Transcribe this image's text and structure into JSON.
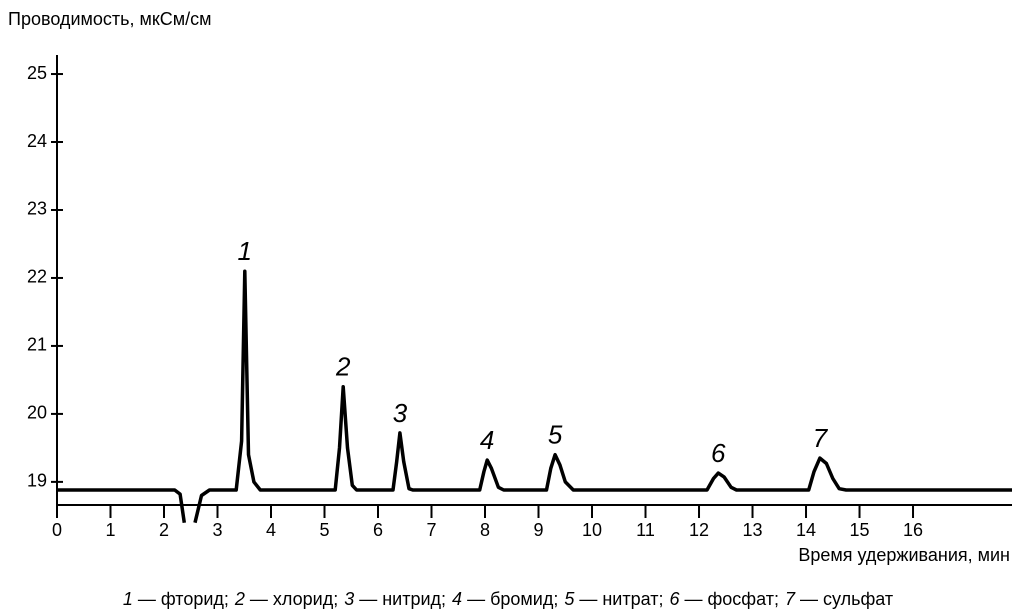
{
  "chart_data": {
    "type": "line",
    "y_label": "Проводимость, мкСм/см",
    "x_label": "Время удерживания, мин",
    "x": [
      0,
      2.2,
      2.3,
      2.38,
      null,
      2.58,
      2.7,
      2.85,
      3.35,
      3.45,
      3.51,
      3.58,
      3.68,
      3.8,
      5.2,
      5.28,
      5.35,
      5.43,
      5.52,
      5.6,
      6.28,
      6.35,
      6.41,
      6.48,
      6.58,
      6.65,
      7.9,
      7.98,
      8.04,
      8.12,
      8.25,
      8.35,
      9.15,
      9.23,
      9.31,
      9.4,
      9.5,
      9.65,
      12.15,
      12.27,
      12.36,
      12.47,
      12.6,
      12.7,
      14.05,
      14.15,
      14.26,
      14.38,
      14.5,
      14.62,
      14.75,
      17.85
    ],
    "series": [
      {
        "color": "#000000",
        "values": [
          18.88,
          18.88,
          18.82,
          18.4,
          null,
          18.4,
          18.8,
          18.88,
          18.88,
          19.6,
          22.1,
          19.4,
          19.0,
          18.88,
          18.88,
          19.5,
          20.4,
          19.5,
          18.95,
          18.88,
          18.88,
          19.3,
          19.72,
          19.3,
          18.9,
          18.88,
          18.88,
          19.15,
          19.32,
          19.2,
          18.92,
          18.88,
          18.88,
          19.2,
          19.4,
          19.25,
          19.0,
          18.88,
          18.88,
          19.05,
          19.13,
          19.07,
          18.92,
          18.88,
          18.88,
          19.15,
          19.35,
          19.27,
          19.05,
          18.9,
          18.88,
          18.88
        ]
      }
    ],
    "xlim": [
      0,
      17.85
    ],
    "ylim": [
      18.66,
      25.28
    ],
    "xticks": [
      0,
      1,
      2,
      3,
      4,
      5,
      6,
      7,
      8,
      9,
      10,
      11,
      12,
      13,
      14,
      15,
      16
    ],
    "yticks": [
      19,
      20,
      21,
      22,
      23,
      24,
      25
    ],
    "annotations": [
      {
        "text": "1",
        "x": 3.51,
        "y": 22.1
      },
      {
        "text": "2",
        "x": 5.35,
        "y": 20.4
      },
      {
        "text": "3",
        "x": 6.41,
        "y": 19.72
      },
      {
        "text": "4",
        "x": 8.04,
        "y": 19.32
      },
      {
        "text": "5",
        "x": 9.31,
        "y": 19.4
      },
      {
        "text": "6",
        "x": 12.36,
        "y": 19.13
      },
      {
        "text": "7",
        "x": 14.26,
        "y": 19.35
      }
    ],
    "caption": [
      {
        "key": "1",
        "text": "— фторид;"
      },
      {
        "key": "2",
        "text": "— хлорид;"
      },
      {
        "key": "3",
        "text": "— нитрид;"
      },
      {
        "key": "4",
        "text": "— бромид;"
      },
      {
        "key": "5",
        "text": "— нитрат;"
      },
      {
        "key": "6",
        "text": "— фосфат;"
      },
      {
        "key": "7",
        "text": "— сульфат"
      }
    ]
  }
}
